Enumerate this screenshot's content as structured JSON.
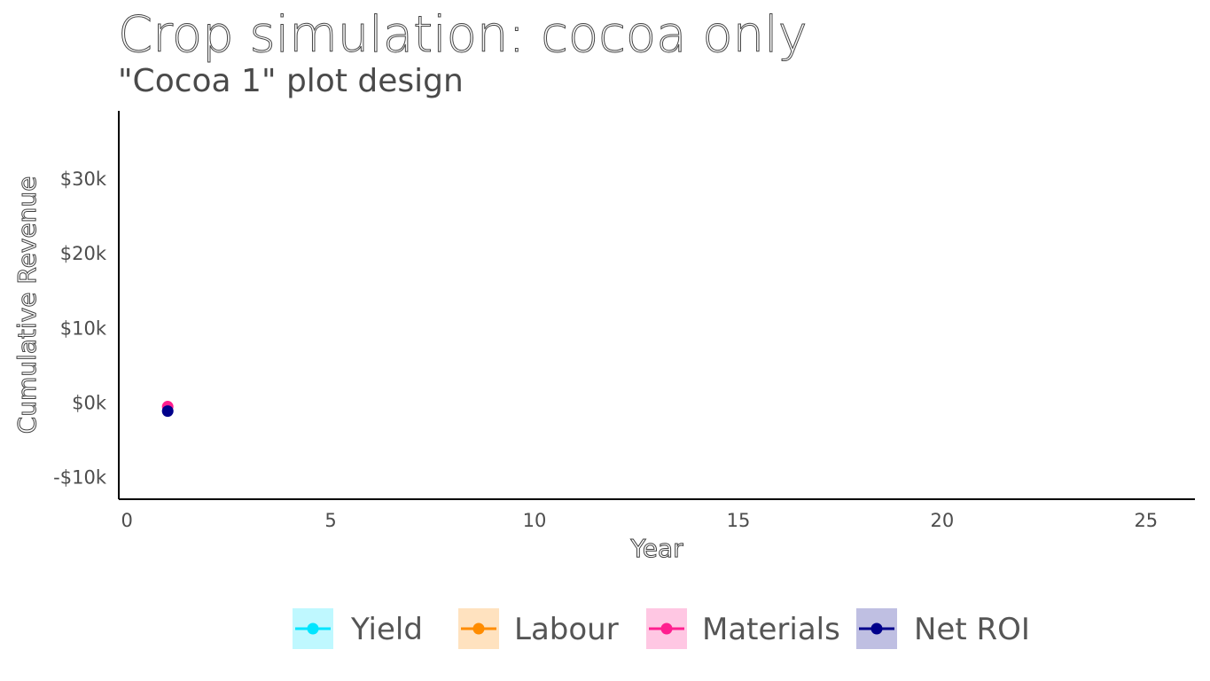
{
  "chart_data": {
    "type": "scatter",
    "title": "Crop simulation: cocoa only",
    "subtitle": "\"Cocoa 1\" plot design",
    "xlabel": "Year",
    "ylabel": "Cumulative Revenue",
    "xlim": [
      -0.2,
      26.2
    ],
    "ylim": [
      -13000,
      39000
    ],
    "x_ticks": [
      0,
      5,
      10,
      15,
      20,
      25
    ],
    "x_tick_labels": [
      "0",
      "5",
      "10",
      "15",
      "20",
      "25"
    ],
    "y_ticks": [
      -10000,
      0,
      10000,
      20000,
      30000
    ],
    "y_tick_labels": [
      "-$10k",
      "$0k",
      "$10k",
      "$20k",
      "$30k"
    ],
    "grid": false,
    "legend_position": "bottom",
    "series": [
      {
        "name": "Yield",
        "color": "#00e5ff",
        "points": []
      },
      {
        "name": "Labour",
        "color": "#ff8c00",
        "points": []
      },
      {
        "name": "Materials",
        "color": "#ff1f8f",
        "points": [
          {
            "x": 1,
            "y": -600
          }
        ]
      },
      {
        "name": "Net ROI",
        "color": "#00008b",
        "points": [
          {
            "x": 1,
            "y": -1200
          }
        ]
      }
    ]
  }
}
